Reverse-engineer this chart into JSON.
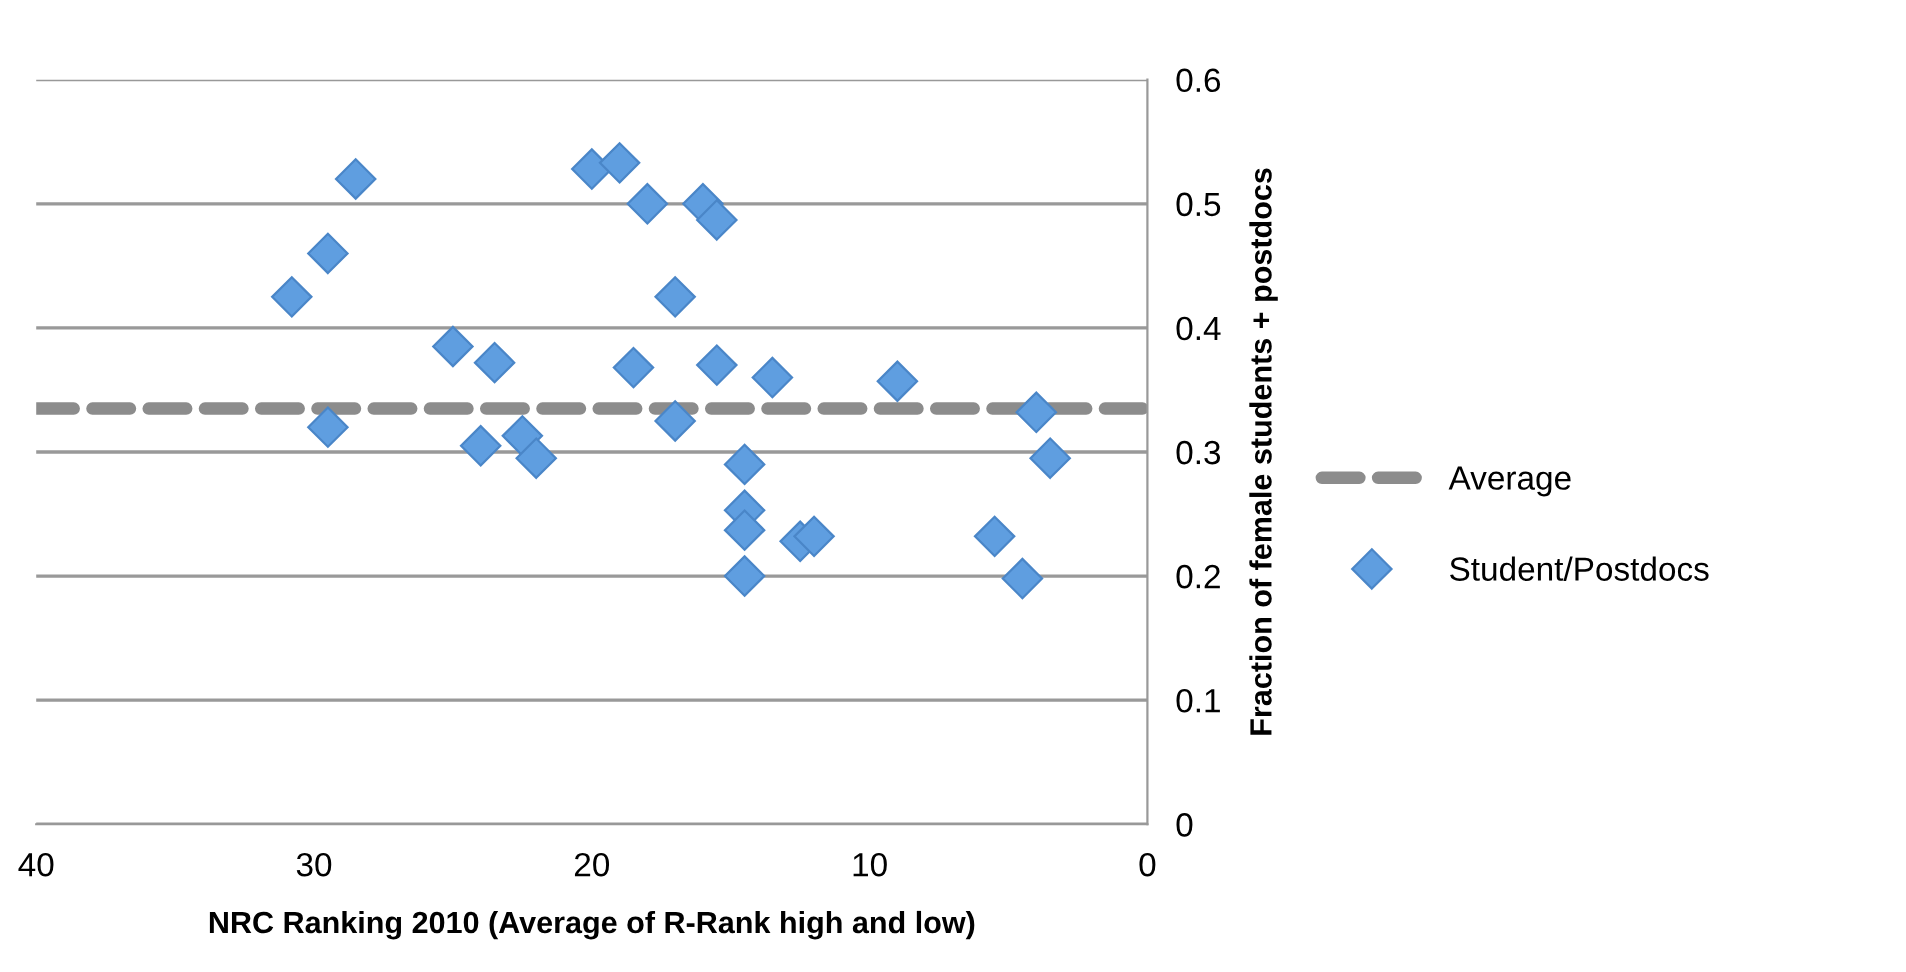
{
  "chart_data": {
    "type": "scatter",
    "xlabel": "NRC Ranking 2010 (Average of R-Rank high and low)",
    "ylabel": "Fraction of female students + postdocs",
    "xlim": [
      40,
      0
    ],
    "xticks": [
      40,
      30,
      20,
      10,
      0
    ],
    "ylim": [
      0,
      0.6
    ],
    "yticks": [
      0,
      0.1,
      0.2,
      0.3,
      0.4,
      0.5,
      0.6
    ],
    "grid": "y",
    "legend": "right",
    "series": [
      {
        "name": "Average",
        "type": "line",
        "color": "#8c8c8c",
        "line_style": "dashed",
        "marker": "none",
        "x": [
          40,
          0
        ],
        "values": [
          0.335,
          0.335
        ]
      },
      {
        "name": "Student/Postdocs",
        "color": "#5f9ee0",
        "marker": "diamond",
        "x": [
          30.8,
          29.5,
          28.5,
          29.5,
          25,
          23.5,
          24,
          22.5,
          22,
          20,
          19,
          18,
          18.5,
          17,
          17,
          16,
          15.5,
          15.5,
          14.5,
          14.5,
          14.5,
          14.5,
          13.5,
          12.5,
          12,
          9,
          5.5,
          4.5,
          4,
          3.5
        ],
        "values": [
          0.425,
          0.46,
          0.52,
          0.32,
          0.385,
          0.372,
          0.305,
          0.313,
          0.295,
          0.528,
          0.533,
          0.5,
          0.368,
          0.425,
          0.325,
          0.5,
          0.487,
          0.37,
          0.29,
          0.253,
          0.237,
          0.2,
          0.36,
          0.228,
          0.232,
          0.357,
          0.232,
          0.198,
          0.332,
          0.295
        ]
      }
    ]
  }
}
